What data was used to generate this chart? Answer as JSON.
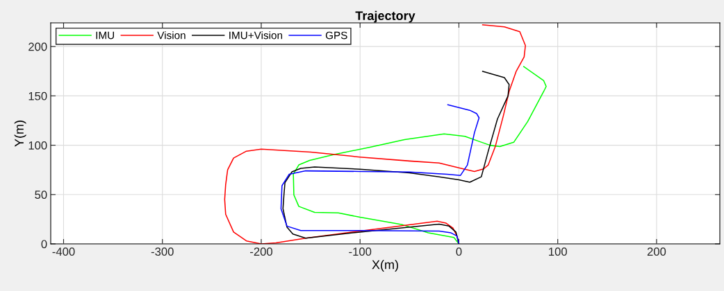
{
  "chart_data": {
    "type": "line",
    "title": "Trajectory",
    "xlabel": "X(m)",
    "ylabel": "Y(m)",
    "xlim": [
      -413,
      264
    ],
    "ylim": [
      0,
      224
    ],
    "xticks": [
      -400,
      -300,
      -200,
      -100,
      0,
      100,
      200
    ],
    "yticks": [
      0,
      50,
      100,
      150,
      200
    ],
    "grid": true,
    "legend": "top left",
    "marker": "none",
    "line_style": "solid",
    "series": [
      {
        "name": "IMU",
        "color": "#00ff00",
        "x": [
          0,
          -5,
          -31,
          -57,
          -100,
          -122,
          -146,
          -162,
          -167,
          -167.5,
          -162,
          -151,
          -127,
          -90,
          -55,
          -15,
          6,
          20,
          32,
          41.5,
          55.5,
          69.6,
          85.8,
          88.3,
          85.8,
          65.6
        ],
        "values": [
          0,
          6.5,
          11.2,
          19.4,
          27,
          31.5,
          32,
          38,
          49.7,
          70.6,
          80,
          84.6,
          90.4,
          98,
          105.6,
          111.4,
          109,
          104,
          99.8,
          98.6,
          103,
          124,
          154.5,
          159.6,
          165.4,
          179.7
        ]
      },
      {
        "name": "Vision",
        "color": "#ff0000",
        "x": [
          0,
          -2,
          -6,
          -13,
          -22,
          -60,
          -100,
          -155,
          -185,
          -200,
          -215,
          -228,
          -236,
          -237,
          -236,
          -234,
          -228,
          -215,
          -200,
          -150,
          -100,
          -50,
          -20,
          0,
          15.7,
          25,
          29.7,
          36.8,
          45,
          50.8,
          58,
          66,
          67.3,
          61.6,
          46,
          24
        ],
        "values": [
          0,
          8,
          16,
          21,
          23,
          18,
          13,
          5.8,
          1,
          0,
          3,
          12,
          30,
          45,
          60,
          75,
          87,
          94,
          96,
          93,
          88,
          84,
          82,
          77,
          73.4,
          76,
          80,
          98.6,
          130,
          154.5,
          175,
          189.5,
          201,
          215,
          220,
          222
        ]
      },
      {
        "name": "IMU+Vision",
        "color": "#000000",
        "x": [
          0,
          -3,
          -10,
          -20,
          -60,
          -100,
          -155,
          -168,
          -174,
          -178,
          -177,
          -176,
          -169,
          -160,
          -146,
          -100,
          -50,
          -20,
          0,
          11,
          22.7,
          29.7,
          39,
          49.7,
          50.8,
          46,
          24
        ],
        "values": [
          0,
          12,
          18,
          20,
          16,
          12,
          5.8,
          10,
          17,
          35.7,
          50,
          62,
          73,
          76.5,
          78,
          75.7,
          72,
          68,
          65,
          62.5,
          68,
          94,
          126.6,
          150,
          161.5,
          168.5,
          174.8
        ]
      },
      {
        "name": "GPS",
        "color": "#0000ff",
        "x": [
          0,
          -2,
          -8,
          -20,
          -100,
          -160,
          -174,
          -180,
          -179,
          -171.7,
          -155,
          -100,
          -50,
          -12,
          1.6,
          8.6,
          15.7,
          19.2,
          20.4,
          18,
          11,
          -11.2
        ],
        "values": [
          0,
          8,
          11.2,
          13,
          13.5,
          13.5,
          18,
          35.7,
          59,
          70.6,
          74,
          73.4,
          72.8,
          70.6,
          69.4,
          80,
          112.6,
          124,
          127.8,
          132,
          135.4,
          141
        ]
      }
    ]
  }
}
